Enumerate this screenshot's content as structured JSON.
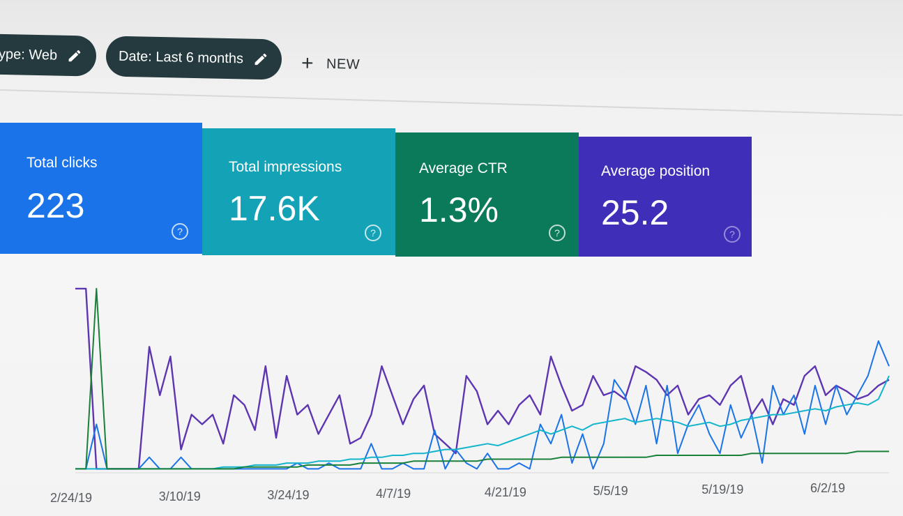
{
  "filters": {
    "type_chip": "ype: Web",
    "date_chip": "Date: Last 6 months",
    "new_button": "NEW",
    "pencil_icon": "pencil-icon",
    "plus_icon": "plus-icon"
  },
  "metrics": [
    {
      "title": "Total clicks",
      "value": "223",
      "color": "#1a73e8"
    },
    {
      "title": "Total impressions",
      "value": "17.6K",
      "color": "#14a2b6"
    },
    {
      "title": "Average CTR",
      "value": "1.3%",
      "color": "#0a7a5a"
    },
    {
      "title": "Average position",
      "value": "25.2",
      "color": "#3f2fb8"
    }
  ],
  "help_glyph": "?",
  "chart_data": {
    "type": "line",
    "grid": false,
    "legend": "none",
    "x_tick_labels": [
      "2/24/19",
      "3/10/19",
      "3/24/19",
      "4/7/19",
      "4/21/19",
      "5/5/19",
      "5/19/19",
      "6/2/19"
    ],
    "y_range": [
      0,
      100
    ],
    "series": [
      {
        "color": "#5e35b1",
        "values": [
          95,
          95,
          2,
          2,
          2,
          2,
          2,
          65,
          40,
          60,
          12,
          30,
          25,
          30,
          15,
          40,
          35,
          22,
          55,
          18,
          50,
          30,
          35,
          20,
          30,
          40,
          15,
          18,
          30,
          55,
          40,
          25,
          38,
          45,
          20,
          15,
          10,
          50,
          42,
          25,
          32,
          25,
          35,
          40,
          30,
          60,
          45,
          32,
          35,
          50,
          40,
          42,
          38,
          55,
          52,
          48,
          40,
          45,
          30,
          38,
          40,
          35,
          45,
          50,
          30,
          38,
          25,
          38,
          35,
          50,
          55,
          40,
          45,
          42,
          38,
          40,
          45,
          48
        ]
      },
      {
        "color": "#1a73e8",
        "values": [
          2,
          2,
          25,
          2,
          2,
          2,
          2,
          8,
          2,
          2,
          8,
          2,
          2,
          2,
          2,
          2,
          2,
          2,
          2,
          2,
          2,
          5,
          2,
          2,
          5,
          2,
          2,
          2,
          15,
          2,
          2,
          5,
          2,
          2,
          22,
          2,
          12,
          5,
          2,
          10,
          2,
          2,
          5,
          2,
          25,
          15,
          30,
          5,
          20,
          2,
          15,
          48,
          40,
          25,
          45,
          15,
          45,
          10,
          25,
          35,
          20,
          10,
          35,
          18,
          30,
          5,
          45,
          30,
          40,
          20,
          45,
          25,
          45,
          30,
          40,
          50,
          68,
          55
        ]
      },
      {
        "color": "#12b5cb",
        "values": [
          2,
          2,
          2,
          2,
          2,
          2,
          2,
          2,
          2,
          2,
          2,
          2,
          2,
          2,
          3,
          3,
          3,
          4,
          4,
          4,
          5,
          5,
          5,
          6,
          6,
          6,
          7,
          7,
          8,
          8,
          9,
          9,
          10,
          10,
          11,
          12,
          12,
          13,
          14,
          15,
          14,
          16,
          18,
          20,
          22,
          20,
          22,
          24,
          22,
          25,
          26,
          27,
          28,
          26,
          27,
          28,
          27,
          26,
          24,
          25,
          26,
          24,
          25,
          27,
          28,
          29,
          30,
          30,
          31,
          32,
          33,
          32,
          34,
          35,
          36,
          35,
          38,
          50
        ]
      },
      {
        "color": "#188038",
        "values": [
          2,
          2,
          95,
          2,
          2,
          2,
          2,
          2,
          2,
          2,
          2,
          2,
          2,
          2,
          2,
          2,
          3,
          3,
          3,
          3,
          3,
          3,
          4,
          4,
          4,
          4,
          4,
          5,
          5,
          5,
          5,
          5,
          6,
          6,
          6,
          6,
          6,
          6,
          6,
          7,
          7,
          7,
          7,
          7,
          7,
          7,
          8,
          8,
          8,
          8,
          8,
          8,
          8,
          8,
          8,
          9,
          9,
          9,
          9,
          9,
          9,
          9,
          9,
          9,
          10,
          10,
          10,
          10,
          10,
          10,
          10,
          10,
          10,
          10,
          11,
          11,
          11,
          11
        ]
      }
    ]
  }
}
